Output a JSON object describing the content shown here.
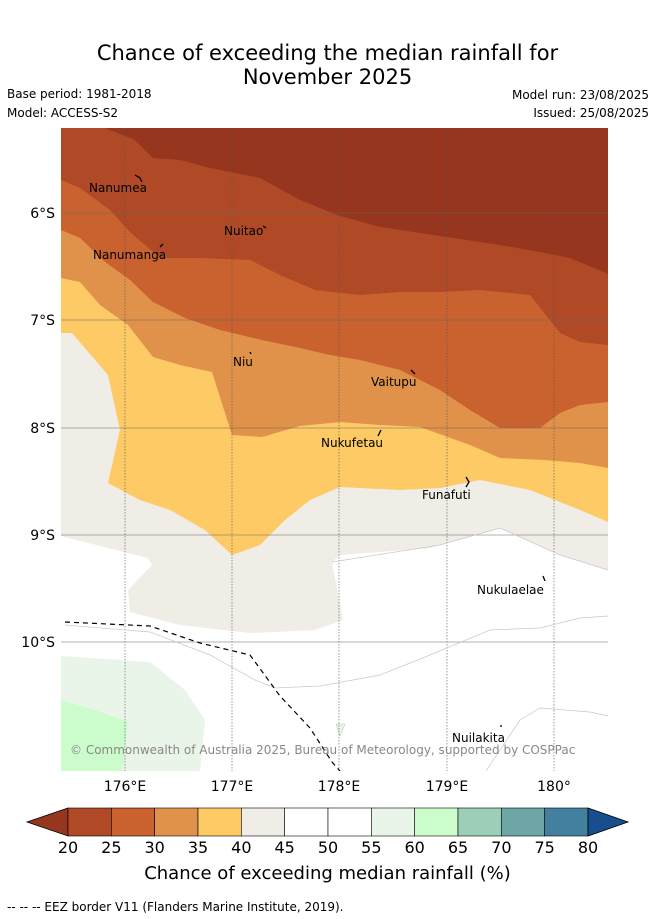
{
  "title_line1": "Chance of exceeding the median rainfall for",
  "title_line2": "November 2025",
  "base_period": "Base period: 1981-2018",
  "model": "Model: ACCESS-S2",
  "model_run": "Model run: 23/08/2025",
  "issued": "Issued: 25/08/2025",
  "copyright": "© Commonwealth of Australia 2025, Bureau of Meteorology, supported by COSPPac",
  "lon_labels": [
    "176°E",
    "177°E",
    "178°E",
    "179°E",
    "180°"
  ],
  "lat_labels": [
    "6°S",
    "7°S",
    "8°S",
    "9°S",
    "10°S"
  ],
  "islands": [
    "Nanumea",
    "Nuitao",
    "Nanumanga",
    "Niu",
    "Vaitupu",
    "Nukufetau",
    "Funafuti",
    "Nukulaelae",
    "Nuilakita"
  ],
  "colorbar": {
    "ticks": [
      "20",
      "25",
      "30",
      "35",
      "40",
      "45",
      "50",
      "55",
      "60",
      "65",
      "70",
      "75",
      "80"
    ],
    "colors": [
      "#b04a26",
      "#c9622f",
      "#e0924a",
      "#fdca66",
      "#f0ece6",
      "#ffffff",
      "#ffffff",
      "#eaf5e9",
      "#ccfccc",
      "#9ccfb7",
      "#6da6a5",
      "#437f9f",
      "#174f8e"
    ],
    "under_color": "#97361f",
    "over_color": "#174f8e",
    "label": "Chance of exceeding median rainfall (%)"
  },
  "footer": "-- -- -- EEZ border V11 (Flanders Marine Institute, 2019)."
}
